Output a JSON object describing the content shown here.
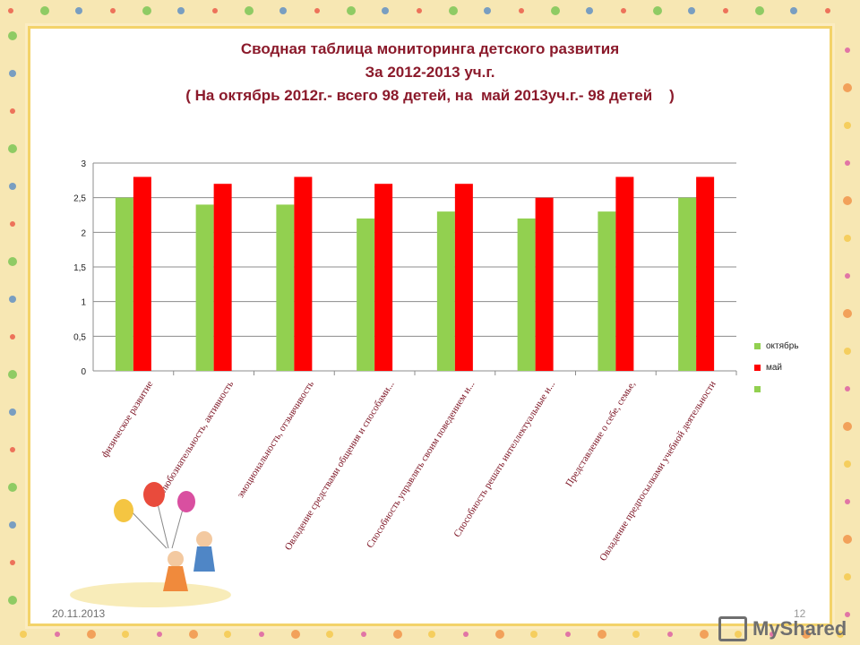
{
  "slide": {
    "title_lines": [
      "Сводная таблица мониторинга детского развития",
      "За 2012-2013 уч.г.",
      "( На октябрь 2012г.- всего 98 детей, на  май 2013уч.г.- 98 детей    )"
    ],
    "footer_date": "20.11.2013",
    "page_number": "12",
    "watermark": "MyShared"
  },
  "chart_data": {
    "type": "bar",
    "categories": [
      "физическое развитие",
      "любознательность, активность",
      "эмоциональность, отзывчивость",
      "Овладение средствами общения и способами...",
      "Способность управлять своим поведением и...",
      "Способность решать интеллектуальные и...",
      "Представление о себе, семье,",
      "Овладение предпосылками учебной деятельности"
    ],
    "series": [
      {
        "name": "октябрь",
        "color": "#92d050",
        "values": [
          2.5,
          2.4,
          2.4,
          2.2,
          2.3,
          2.2,
          2.3,
          2.5
        ]
      },
      {
        "name": "май",
        "color": "#ff0000",
        "values": [
          2.8,
          2.7,
          2.8,
          2.7,
          2.7,
          2.5,
          2.8,
          2.8
        ]
      }
    ],
    "legend_extra_swatch_color": "#92d050",
    "y_ticks": [
      "0",
      "0,5",
      "1",
      "1,5",
      "2",
      "2,5",
      "3"
    ],
    "ylim": [
      0,
      3
    ],
    "grid": true,
    "legend_position": "right"
  }
}
